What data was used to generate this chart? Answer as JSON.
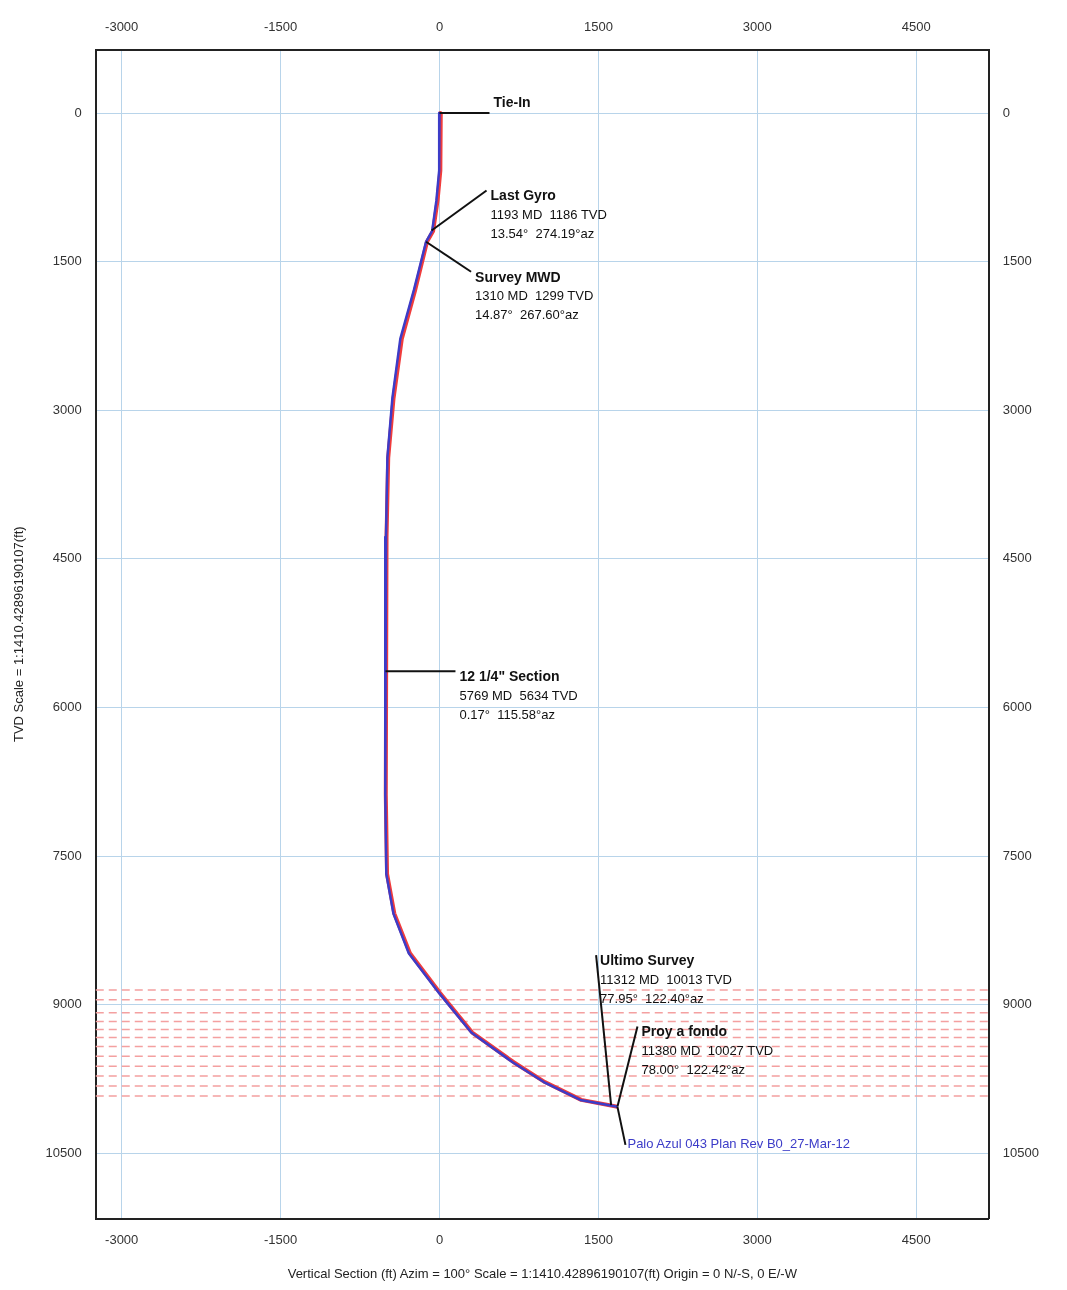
{
  "chart_data": {
    "type": "line",
    "xlabel": "Vertical Section (ft) Azim = 100° Scale = 1:1410.42896190107(ft) Origin = 0 N/-S, 0 E/-W",
    "ylabel": "TVD Scale = 1:1410.42896190107(ft)",
    "xlim": [
      -3245,
      5186
    ],
    "xticks": [
      -3000,
      -1500,
      0,
      1500,
      3000,
      4500
    ],
    "x2lim": [
      -3245,
      5186
    ],
    "x2ticks": [
      -3000,
      -1500,
      0,
      1500,
      3000,
      4500
    ],
    "ylim": [
      11160,
      -640
    ],
    "yticks": [
      0,
      1500,
      3000,
      4500,
      6000,
      7500,
      9000,
      10500
    ],
    "y2lim": [
      11160,
      -640
    ],
    "y2ticks": [
      0,
      1500,
      3000,
      4500,
      6000,
      7500,
      9000,
      10500
    ],
    "grid": true,
    "legend": false,
    "marker": "none",
    "line_style": "solid",
    "series": [
      {
        "color": "#f03c3c",
        "x": [
          12,
          8,
          -18,
          -60,
          -118,
          -228,
          -356,
          -434,
          -484,
          -500,
          -507,
          -495,
          -426,
          -279,
          5,
          309,
          701,
          995,
          1338,
          1680
        ],
        "values": [
          0,
          580,
          880,
          1190,
          1300,
          1780,
          2280,
          2880,
          3480,
          4280,
          6880,
          7680,
          8080,
          8480,
          8880,
          9280,
          9580,
          9780,
          9960,
          10030
        ]
      },
      {
        "name": "Palo Azul 043 Plan Rev B0_27-Mar-12",
        "color": "#3c3cc8",
        "x": [
          0,
          -3,
          -29,
          -69,
          -127,
          -240,
          -370,
          -445,
          -492,
          -505,
          -512,
          -502,
          -435,
          -290,
          -5,
          300,
          690,
          985,
          1330,
          1680
        ],
        "values": [
          0,
          580,
          880,
          1190,
          1300,
          1780,
          2280,
          2880,
          3480,
          4280,
          6880,
          7680,
          8080,
          8480,
          8880,
          9280,
          9580,
          9780,
          9960,
          10030
        ]
      }
    ],
    "ref_lines": [
      {
        "axis": "y",
        "value": 8850,
        "color": "#f4a0a0",
        "line_style": "dashed"
      },
      {
        "axis": "y",
        "value": 8950,
        "color": "#f4a0a0",
        "line_style": "dashed"
      },
      {
        "axis": "y",
        "value": 9080,
        "color": "#f4a0a0",
        "line_style": "dashed"
      },
      {
        "axis": "y",
        "value": 9170,
        "color": "#f4a0a0",
        "line_style": "dashed"
      },
      {
        "axis": "y",
        "value": 9250,
        "color": "#f4a0a0",
        "line_style": "dashed"
      },
      {
        "axis": "y",
        "value": 9330,
        "color": "#f4a0a0",
        "line_style": "dashed"
      },
      {
        "axis": "y",
        "value": 9420,
        "color": "#f4a0a0",
        "line_style": "dashed"
      },
      {
        "axis": "y",
        "value": 9520,
        "color": "#f4a0a0",
        "line_style": "dashed"
      },
      {
        "axis": "y",
        "value": 9620,
        "color": "#f4a0a0",
        "line_style": "dashed"
      },
      {
        "axis": "y",
        "value": 9720,
        "color": "#f4a0a0",
        "line_style": "dashed"
      },
      {
        "axis": "y",
        "value": 9820,
        "color": "#f4a0a0",
        "line_style": "dashed"
      },
      {
        "axis": "y",
        "value": 9920,
        "color": "#f4a0a0",
        "line_style": "dashed"
      }
    ],
    "annotations": [
      {
        "text": "Tie-In",
        "x": 0,
        "y": 0
      },
      {
        "text": "Last Gyro\n1193 MD  1186 TVD\n13.54°  274.19°az",
        "x": -75,
        "y": 1186
      },
      {
        "text": "Survey MWD\n1310 MD  1299 TVD\n14.87°  267.60°az",
        "x": -127,
        "y": 1299
      },
      {
        "text": "12 1/4\" Section\n5769 MD  5634 TVD\n0.17°  115.58°az",
        "x": -510,
        "y": 5634
      },
      {
        "text": "Ultimo Survey\n11312 MD  10013 TVD\n77.95°  122.40°az",
        "x": 1620,
        "y": 10013
      },
      {
        "text": "Proy a fondo\n11380 MD  10027 TVD\n78.00°  122.42°az",
        "x": 1680,
        "y": 10027
      }
    ]
  }
}
